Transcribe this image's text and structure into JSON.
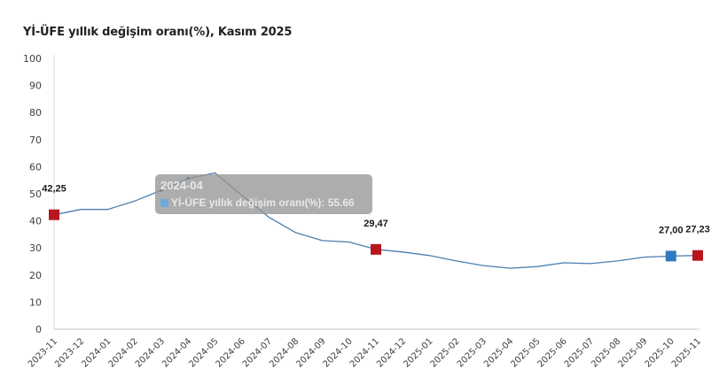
{
  "title": "Yİ-ÜFE yıllık değişim oranı(%), Kasım 2025",
  "tooltip": {
    "title": "2024-04",
    "series_label": "Yİ-ÜFE yıllık değişim oranı(%): 55.66",
    "swatch_color": "#6fa8dc"
  },
  "colors": {
    "line": "#4a7fb0",
    "highlight_red": "#b8161d",
    "highlight_blue": "#2e7bbf",
    "axis": "#d9d9d9"
  },
  "chart_data": {
    "type": "line",
    "title": "Yİ-ÜFE yıllık değişim oranı(%), Kasım 2025",
    "xlabel": "",
    "ylabel": "",
    "ylim": [
      0,
      100
    ],
    "yticks": [
      0,
      10,
      20,
      30,
      40,
      50,
      60,
      70,
      80,
      90,
      100
    ],
    "grid": false,
    "legend": "none",
    "categories": [
      "2023-11",
      "2023-12",
      "2024-01",
      "2024-02",
      "2024-03",
      "2024-04",
      "2024-05",
      "2024-06",
      "2024-07",
      "2024-08",
      "2024-09",
      "2024-10",
      "2024-11",
      "2024-12",
      "2025-01",
      "2025-02",
      "2025-03",
      "2025-04",
      "2025-05",
      "2025-06",
      "2025-07",
      "2025-08",
      "2025-09",
      "2025-10",
      "2025-11"
    ],
    "series": [
      {
        "name": "Yİ-ÜFE yıllık değişim oranı(%)",
        "values": [
          42.25,
          44.2,
          44.2,
          47.3,
          51.3,
          55.66,
          57.7,
          49.4,
          41.4,
          35.7,
          32.7,
          32.2,
          29.47,
          28.5,
          27.2,
          25.2,
          23.5,
          22.5,
          23.1,
          24.5,
          24.2,
          25.2,
          26.6,
          27.0,
          27.23
        ]
      }
    ],
    "annotations": [
      {
        "category": "2023-11",
        "label": "42,25",
        "marker": "square",
        "color": "#b8161d"
      },
      {
        "category": "2024-11",
        "label": "29,47",
        "marker": "square",
        "color": "#b8161d"
      },
      {
        "category": "2025-10",
        "label": "27,00",
        "marker": "square",
        "color": "#2e7bbf"
      },
      {
        "category": "2025-11",
        "label": "27,23",
        "marker": "square",
        "color": "#b8161d"
      }
    ]
  }
}
